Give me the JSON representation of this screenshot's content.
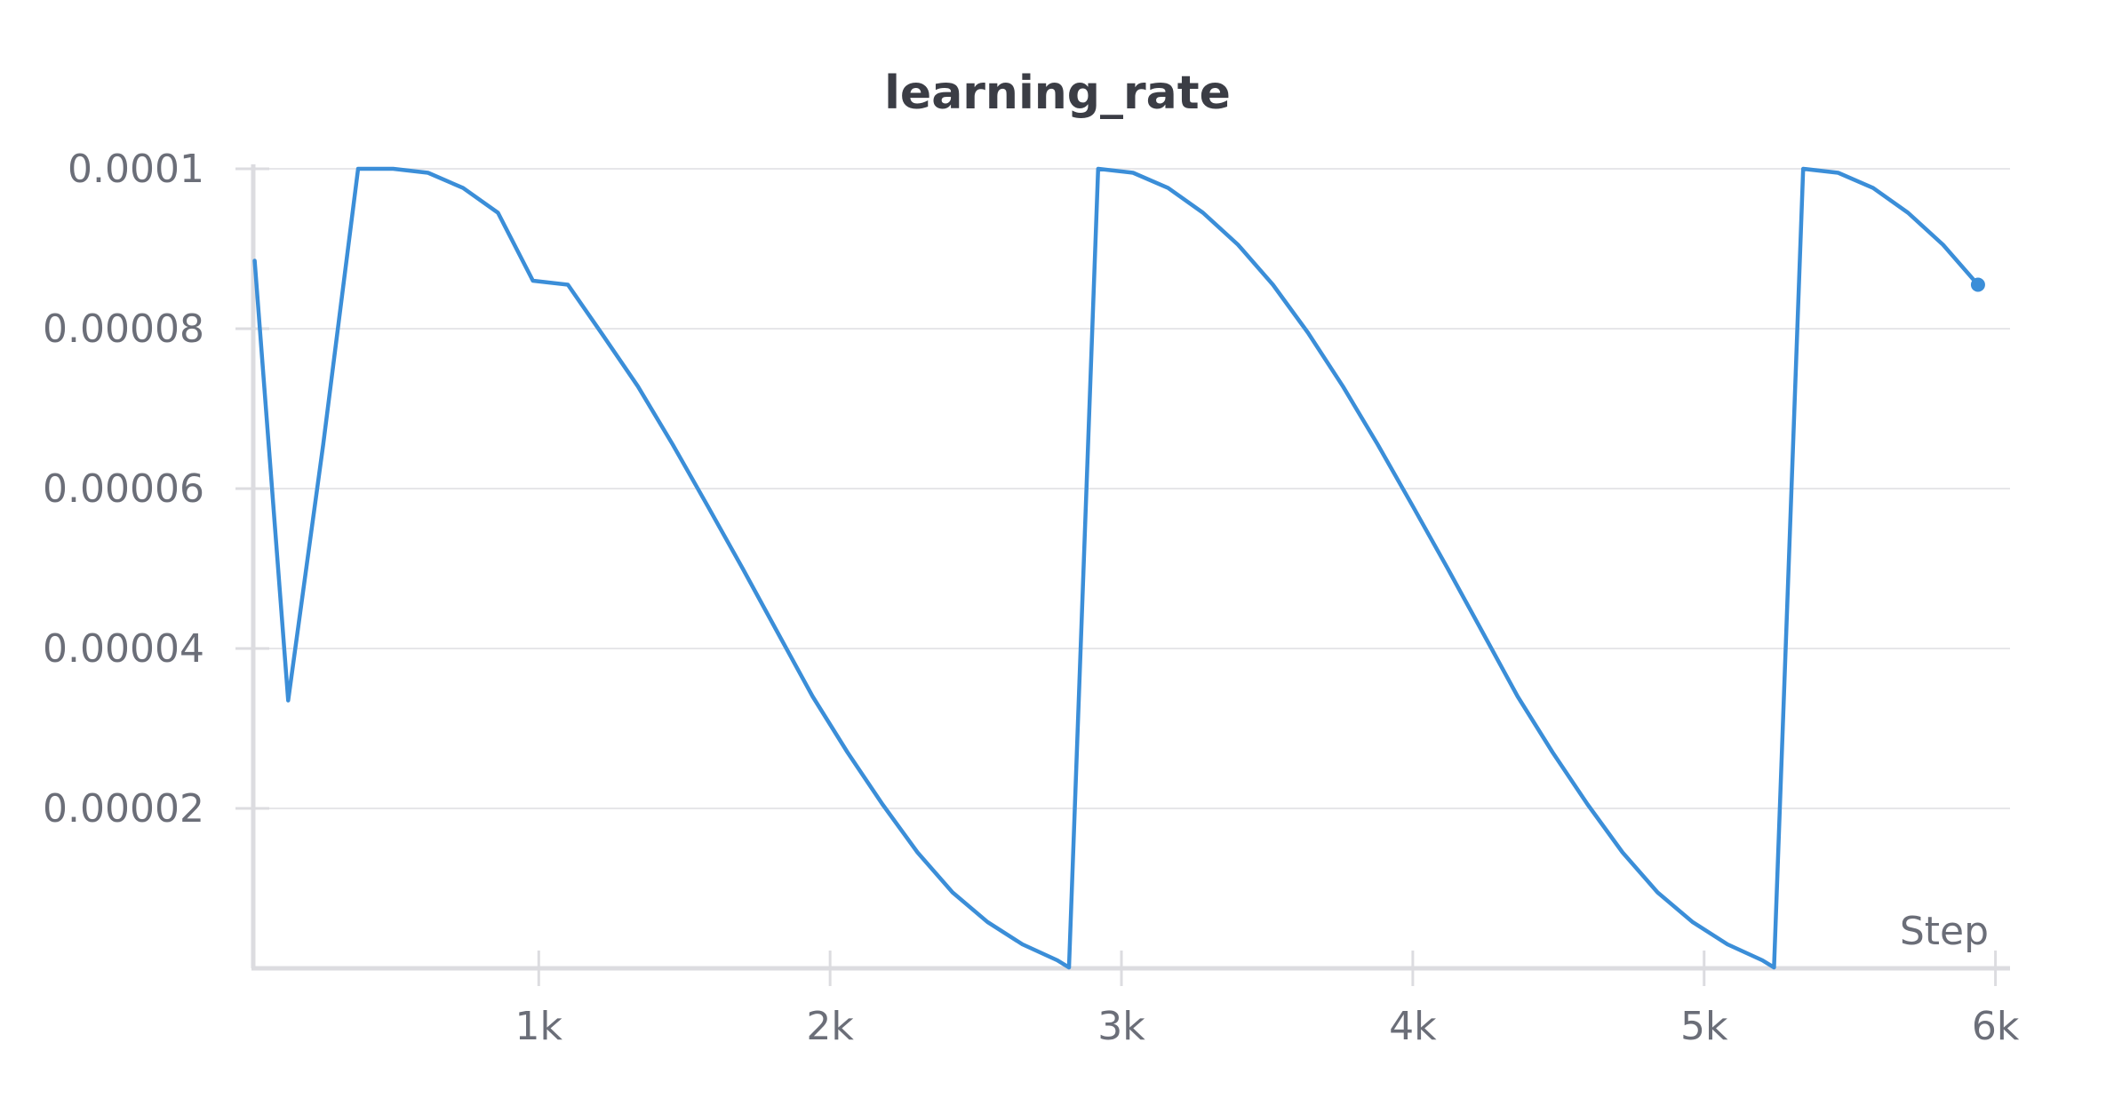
{
  "chart_data": {
    "type": "line",
    "title": "learning_rate",
    "xlabel": "Step",
    "ylabel": "",
    "xlim": [
      20,
      6050
    ],
    "ylim": [
      0,
      0.0001
    ],
    "grid": true,
    "legend": "none",
    "x_ticks": [
      {
        "value": 1000,
        "label": "1k"
      },
      {
        "value": 2000,
        "label": "2k"
      },
      {
        "value": 3000,
        "label": "3k"
      },
      {
        "value": 4000,
        "label": "4k"
      },
      {
        "value": 5000,
        "label": "5k"
      },
      {
        "value": 6000,
        "label": "6k"
      }
    ],
    "y_ticks": [
      {
        "value": 2e-05,
        "label": "0.00002"
      },
      {
        "value": 4e-05,
        "label": "0.00004"
      },
      {
        "value": 6e-05,
        "label": "0.00006"
      },
      {
        "value": 8e-05,
        "label": "0.00008"
      },
      {
        "value": 0.0001,
        "label": "0.0001"
      }
    ],
    "series": [
      {
        "color": "#3b8ed8",
        "end_marker": true,
        "points": [
          [
            25,
            8.85e-05
          ],
          [
            140,
            3.35e-05
          ],
          [
            260,
            6.55e-05
          ],
          [
            380,
            0.0001
          ],
          [
            500,
            0.0001
          ],
          [
            620,
            9.95e-05
          ],
          [
            740,
            9.76e-05
          ],
          [
            860,
            9.45e-05
          ],
          [
            980,
            8.6e-05
          ],
          [
            1100,
            8.55e-05
          ],
          [
            1220,
            7.92e-05
          ],
          [
            1340,
            7.28e-05
          ],
          [
            1460,
            6.55e-05
          ],
          [
            1580,
            5.78e-05
          ],
          [
            1700,
            5e-05
          ],
          [
            1820,
            4.2e-05
          ],
          [
            1940,
            3.4e-05
          ],
          [
            2060,
            2.7e-05
          ],
          [
            2180,
            2.05e-05
          ],
          [
            2300,
            1.45e-05
          ],
          [
            2420,
            9.5e-06
          ],
          [
            2540,
            5.8e-06
          ],
          [
            2660,
            3e-06
          ],
          [
            2780,
            1e-06
          ],
          [
            2820,
            1e-07
          ],
          [
            2920,
            0.0001
          ],
          [
            3040,
            9.95e-05
          ],
          [
            3160,
            9.76e-05
          ],
          [
            3280,
            9.45e-05
          ],
          [
            3400,
            9.05e-05
          ],
          [
            3520,
            8.55e-05
          ],
          [
            3640,
            7.95e-05
          ],
          [
            3760,
            7.28e-05
          ],
          [
            3880,
            6.55e-05
          ],
          [
            4000,
            5.78e-05
          ],
          [
            4120,
            5e-05
          ],
          [
            4240,
            4.2e-05
          ],
          [
            4360,
            3.4e-05
          ],
          [
            4480,
            2.7e-05
          ],
          [
            4600,
            2.05e-05
          ],
          [
            4720,
            1.45e-05
          ],
          [
            4840,
            9.5e-06
          ],
          [
            4960,
            5.8e-06
          ],
          [
            5080,
            3e-06
          ],
          [
            5200,
            1e-06
          ],
          [
            5240,
            1e-07
          ],
          [
            5340,
            0.0001
          ],
          [
            5460,
            9.95e-05
          ],
          [
            5580,
            9.76e-05
          ],
          [
            5700,
            9.45e-05
          ],
          [
            5820,
            9.05e-05
          ],
          [
            5940,
            8.55e-05
          ]
        ]
      }
    ]
  }
}
